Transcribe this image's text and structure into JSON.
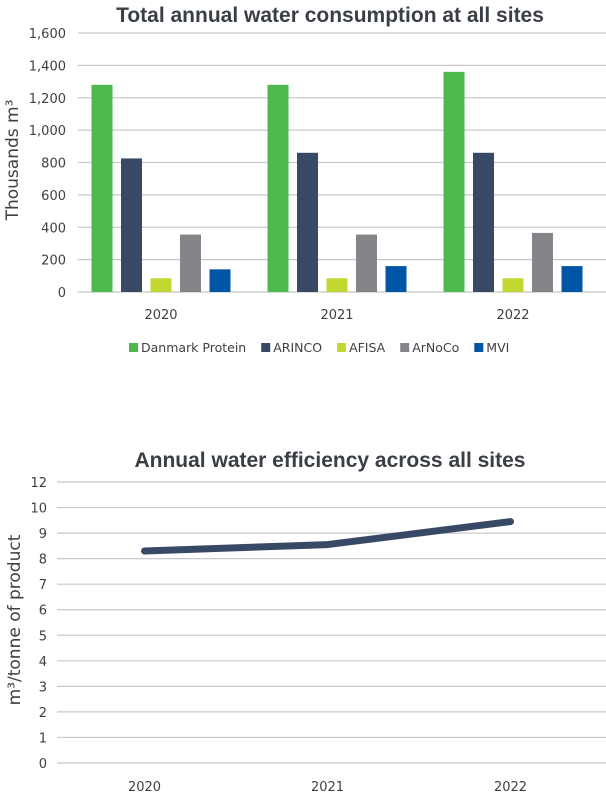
{
  "chart_data": [
    {
      "type": "bar",
      "title": "Total annual water consumption at all sites",
      "xlabel": "",
      "ylabel": "Thousands m³",
      "ylim": [
        0,
        1600
      ],
      "yticks": [
        0,
        200,
        400,
        600,
        800,
        1000,
        1200,
        1400,
        1600
      ],
      "ytick_labels": [
        "0",
        "200",
        "400",
        "600",
        "800",
        "1,000",
        "1,200",
        "1,400",
        "1,600"
      ],
      "categories": [
        "2020",
        "2021",
        "2022"
      ],
      "grid": true,
      "legend": "bottom",
      "series": [
        {
          "name": "Danmark Protein",
          "color": "#4db84e",
          "values": [
            1280,
            1280,
            1360
          ]
        },
        {
          "name": "ARINCO",
          "color": "#384966",
          "values": [
            825,
            860,
            860
          ]
        },
        {
          "name": "AFISA",
          "color": "#c2d72f",
          "values": [
            85,
            85,
            85
          ]
        },
        {
          "name": "ArNoCo",
          "color": "#848589",
          "values": [
            355,
            355,
            365
          ]
        },
        {
          "name": "MVI",
          "color": "#0055a5",
          "values": [
            140,
            160,
            160
          ]
        }
      ]
    },
    {
      "type": "line",
      "title": "Annual water efficiency across all sites",
      "xlabel": "",
      "ylabel": "m³/tonne of product",
      "ytick_labels": [
        "0",
        "1",
        "2",
        "3",
        "4",
        "5",
        "6",
        "7",
        "8",
        "9",
        "10",
        "12"
      ],
      "ytick_values": [
        0,
        1,
        2,
        3,
        4,
        5,
        6,
        7,
        8,
        9,
        10,
        12
      ],
      "categories": [
        "2020",
        "2021",
        "2022"
      ],
      "grid": true,
      "legend": "none",
      "series": [
        {
          "name": "Water efficiency",
          "color": "#384966",
          "values": [
            8.3,
            8.55,
            9.45
          ]
        }
      ]
    }
  ]
}
